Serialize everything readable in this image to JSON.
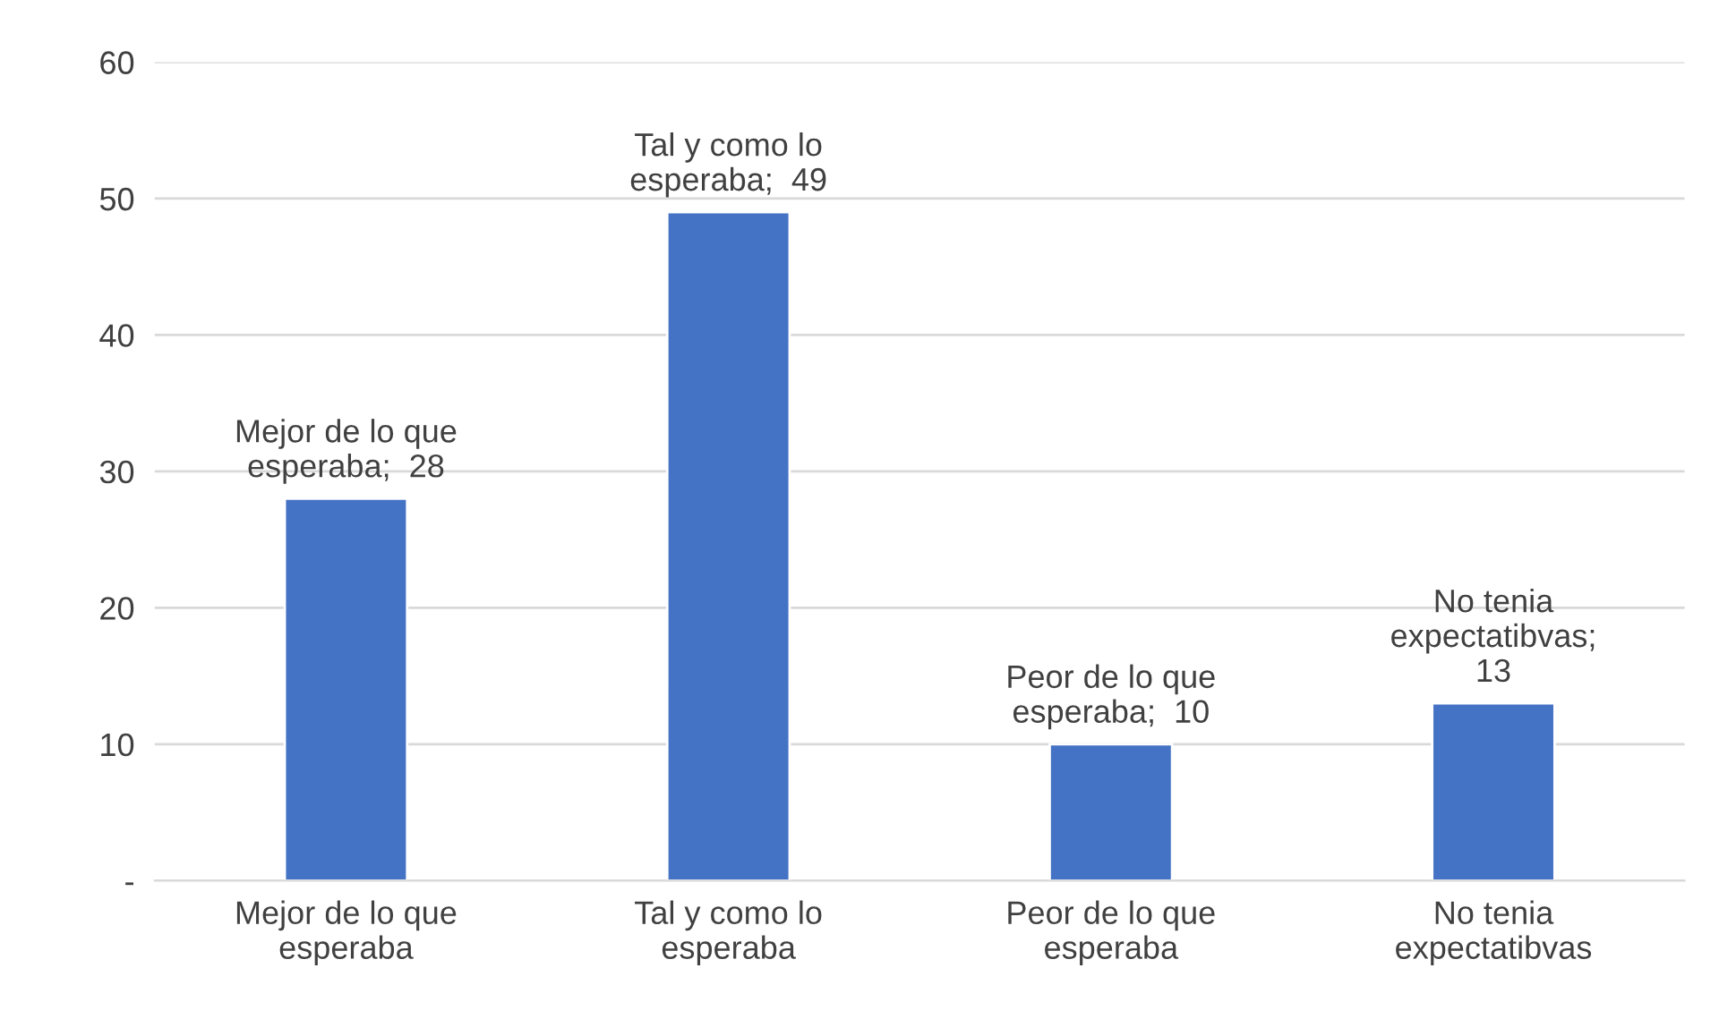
{
  "chart_data": {
    "type": "bar",
    "categories": [
      "Mejor de lo que esperaba",
      "Tal y como lo esperaba",
      "Peor de lo que esperaba",
      "No tenia expectatibvas"
    ],
    "values": [
      28,
      49,
      10,
      13
    ],
    "color": "#4472c4",
    "value_labels": [
      "Mejor de lo que esperaba;  28",
      "Tal y como lo esperaba;  49",
      "Peor de lo que esperaba;  10",
      "No tenia expectatibvas;  13"
    ],
    "ylim": [
      0,
      60
    ],
    "yticks": [
      {
        "value": 0,
        "label": "-"
      },
      10,
      20,
      30,
      40,
      50,
      60
    ],
    "grid": "y",
    "legend": false
  }
}
